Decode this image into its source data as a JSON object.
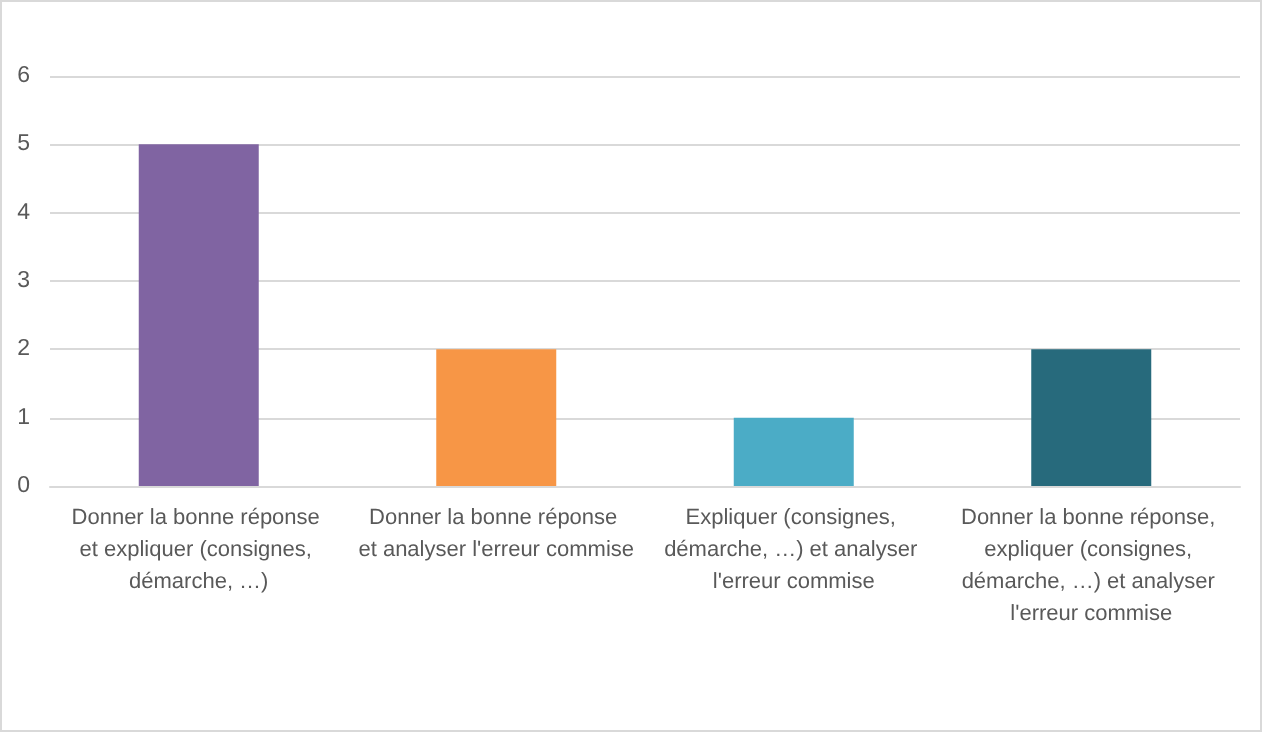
{
  "chart_data": {
    "type": "bar",
    "categories": [
      "Donner la bonne réponse et expliquer (consignes, démarche, …)",
      "Donner la bonne réponse et analyser l'erreur commise",
      "Expliquer (consignes, démarche, …) et analyser l'erreur commise",
      "Donner la bonne réponse, expliquer (consignes, démarche, …) et analyser l'erreur commise"
    ],
    "values": [
      5,
      2,
      1,
      2
    ],
    "colors": [
      "#8064a2",
      "#f79646",
      "#4bacc6",
      "#276a7c"
    ],
    "ylim": [
      0,
      6
    ],
    "yticks": [
      0,
      1,
      2,
      3,
      4,
      5,
      6
    ],
    "grid": "y"
  }
}
